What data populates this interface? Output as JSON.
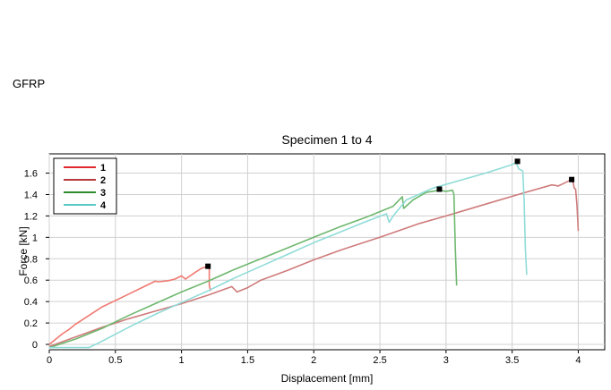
{
  "page": {
    "label": "GFRP"
  },
  "chart_data": {
    "type": "line",
    "title": "Specimen 1 to 4",
    "xlabel": "Displacement [mm]",
    "ylabel": "Force [kN]",
    "xlim": [
      0,
      4.2
    ],
    "ylim": [
      -0.05,
      1.78
    ],
    "xticks": [
      0,
      0.5,
      1,
      1.5,
      2,
      2.5,
      3,
      3.5,
      4
    ],
    "yticks": [
      0,
      0.2,
      0.4,
      0.6,
      0.8,
      1,
      1.2,
      1.4,
      1.6
    ],
    "xtick_labels": [
      "0",
      "0.5",
      "1",
      "1.5",
      "2",
      "2.5",
      "3",
      "3.5",
      "4"
    ],
    "ytick_labels": [
      "0",
      "0.2",
      "0.4",
      "0.6",
      "0.8",
      "1",
      "1.2",
      "1.4",
      "1.6"
    ],
    "grid": true,
    "legend_position": "top-left",
    "series": [
      {
        "name": "1",
        "color": "#f07a72",
        "legend_color": "#e0282e",
        "x": [
          0.0,
          0.05,
          0.1,
          0.15,
          0.2,
          0.3,
          0.4,
          0.5,
          0.6,
          0.7,
          0.8,
          0.83,
          0.9,
          0.95,
          1.0,
          1.03,
          1.1,
          1.15,
          1.2,
          1.21,
          1.21,
          1.22
        ],
        "y": [
          0.0,
          0.05,
          0.1,
          0.14,
          0.19,
          0.27,
          0.35,
          0.41,
          0.47,
          0.53,
          0.59,
          0.585,
          0.595,
          0.61,
          0.64,
          0.61,
          0.67,
          0.71,
          0.73,
          0.72,
          0.55,
          0.5
        ],
        "failure_x": 1.2,
        "failure_y": 0.73
      },
      {
        "name": "2",
        "color": "#cf7b7b",
        "legend_color": "#b8393a",
        "x": [
          0.0,
          0.2,
          0.4,
          0.6,
          0.8,
          1.0,
          1.2,
          1.38,
          1.42,
          1.5,
          1.6,
          1.8,
          2.0,
          2.2,
          2.5,
          2.8,
          3.0,
          3.3,
          3.6,
          3.8,
          3.85,
          3.9,
          3.95,
          3.96,
          3.97,
          3.98,
          3.99,
          4.0
        ],
        "y": [
          -0.02,
          0.07,
          0.16,
          0.24,
          0.31,
          0.38,
          0.46,
          0.54,
          0.49,
          0.53,
          0.6,
          0.69,
          0.79,
          0.88,
          1.0,
          1.13,
          1.2,
          1.31,
          1.42,
          1.49,
          1.48,
          1.51,
          1.54,
          1.52,
          1.46,
          1.45,
          1.3,
          1.06
        ],
        "failure_x": 3.95,
        "failure_y": 1.54
      },
      {
        "name": "3",
        "color": "#6fb86f",
        "legend_color": "#2e8b2e",
        "x": [
          0.0,
          0.2,
          0.4,
          0.6,
          0.8,
          1.0,
          1.2,
          1.4,
          1.6,
          1.8,
          2.0,
          2.2,
          2.4,
          2.6,
          2.67,
          2.68,
          2.75,
          2.85,
          2.95,
          3.0,
          3.05,
          3.06,
          3.07,
          3.08
        ],
        "y": [
          -0.03,
          0.05,
          0.15,
          0.27,
          0.38,
          0.49,
          0.59,
          0.7,
          0.8,
          0.9,
          1.0,
          1.1,
          1.19,
          1.29,
          1.38,
          1.27,
          1.35,
          1.42,
          1.44,
          1.43,
          1.44,
          1.4,
          0.9,
          0.55
        ],
        "failure_x": 2.95,
        "failure_y": 1.45
      },
      {
        "name": "4",
        "color": "#8fdcd8",
        "legend_color": "#5bc9c3",
        "x": [
          0.0,
          0.2,
          0.3,
          0.4,
          0.6,
          0.8,
          1.0,
          1.2,
          1.4,
          1.6,
          1.8,
          2.0,
          2.2,
          2.4,
          2.55,
          2.57,
          2.6,
          2.7,
          2.9,
          3.1,
          3.3,
          3.5,
          3.53,
          3.55,
          3.58,
          3.59,
          3.6,
          3.61
        ],
        "y": [
          -0.03,
          -0.03,
          -0.03,
          0.03,
          0.16,
          0.28,
          0.39,
          0.5,
          0.62,
          0.73,
          0.84,
          0.95,
          1.05,
          1.15,
          1.22,
          1.14,
          1.2,
          1.35,
          1.46,
          1.53,
          1.6,
          1.68,
          1.7,
          1.64,
          1.62,
          1.35,
          0.9,
          0.65
        ],
        "failure_x": 3.54,
        "failure_y": 1.71
      }
    ]
  }
}
